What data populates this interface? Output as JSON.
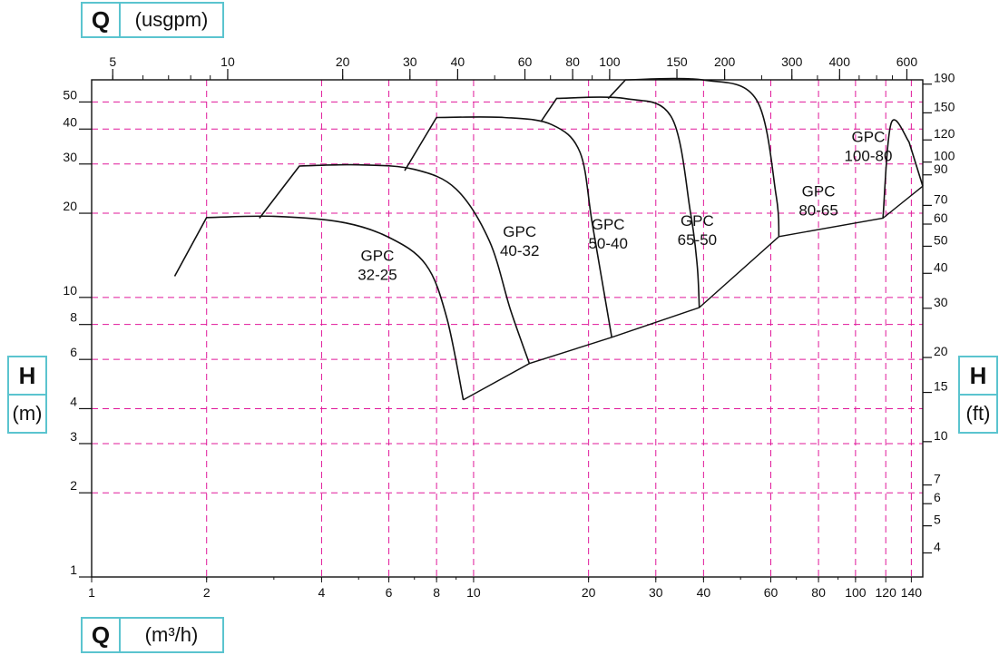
{
  "colors": {
    "accent": "#5bc4cf",
    "grid": "#e0189a",
    "curve": "#111111"
  },
  "labels": {
    "q_top_symbol": "Q",
    "q_top_unit": "(usgpm)",
    "q_bottom_symbol": "Q",
    "q_bottom_unit": "(m³/h)",
    "h_left_symbol": "H",
    "h_left_unit": "(m)",
    "h_right_symbol": "H",
    "h_right_unit": "(ft)"
  },
  "chart_data": {
    "type": "line",
    "xscale": "log",
    "yscale": "log",
    "xlim": [
      1,
      150
    ],
    "ylim": [
      1,
      60
    ],
    "x_ticks_bottom": [
      1,
      2,
      4,
      6,
      8,
      10,
      20,
      30,
      40,
      60,
      80,
      100,
      120,
      140
    ],
    "y_ticks_left": [
      1,
      2,
      3,
      4,
      6,
      8,
      10,
      20,
      30,
      40,
      50
    ],
    "x_ticks_top_usgpm": [
      5,
      10,
      20,
      30,
      40,
      60,
      80,
      100,
      150,
      200,
      300,
      400,
      600
    ],
    "y_ticks_right_ft": [
      4,
      5,
      6,
      7,
      10,
      15,
      20,
      30,
      40,
      50,
      60,
      70,
      90,
      100,
      120,
      150,
      190
    ],
    "grid_x": [
      2,
      4,
      6,
      8,
      10,
      20,
      30,
      40,
      60,
      80,
      100,
      120,
      140
    ],
    "grid_y": [
      2,
      3,
      4,
      6,
      8,
      10,
      20,
      30,
      40,
      50
    ],
    "grid": true,
    "series": [
      {
        "name": "GPC 32-25",
        "label_lines": [
          "GPC",
          "32-25"
        ],
        "label_at": [
          5.6,
          13.5
        ],
        "points": [
          [
            1.65,
            11.9
          ],
          [
            2,
            19.3
          ],
          [
            3,
            19.5
          ],
          [
            4.5,
            18.6
          ],
          [
            6,
            16.4
          ],
          [
            7.5,
            13.1
          ],
          [
            8.5,
            8.5
          ],
          [
            9.4,
            4.3
          ]
        ]
      },
      {
        "name": "GPC 40-32",
        "label_lines": [
          "GPC",
          "40-32"
        ],
        "label_at": [
          13.2,
          16.5
        ],
        "points": [
          [
            2.75,
            19.2
          ],
          [
            3.5,
            29.5
          ],
          [
            5,
            29.8
          ],
          [
            7,
            28.7
          ],
          [
            9,
            24.4
          ],
          [
            11,
            15.9
          ],
          [
            12.5,
            9.0
          ],
          [
            14,
            5.8
          ]
        ]
      },
      {
        "name": "GPC 50-40",
        "label_lines": [
          "GPC",
          "50-40"
        ],
        "label_at": [
          22.5,
          17.5
        ],
        "points": [
          [
            6.6,
            28.4
          ],
          [
            8,
            44
          ],
          [
            12,
            44
          ],
          [
            16,
            41.5
          ],
          [
            19,
            33
          ],
          [
            20.5,
            18
          ],
          [
            23,
            7.2
          ]
        ]
      },
      {
        "name": "GPC 65-50",
        "label_lines": [
          "GPC",
          "65-50"
        ],
        "label_at": [
          38.5,
          18
        ],
        "points": [
          [
            15,
            42.5
          ],
          [
            16.5,
            51.5
          ],
          [
            25,
            51.4
          ],
          [
            33,
            44
          ],
          [
            37,
            20
          ],
          [
            38.5,
            13
          ],
          [
            39,
            9.2
          ]
        ]
      },
      {
        "name": "GPC 80-65",
        "label_lines": [
          "GPC",
          "80-65"
        ],
        "label_at": [
          80,
          23
        ],
        "points": [
          [
            22.5,
            51.4
          ],
          [
            25,
            60
          ],
          [
            40,
            59.9
          ],
          [
            55,
            51
          ],
          [
            62,
            23
          ],
          [
            63,
            16.5
          ]
        ]
      },
      {
        "name": "GPC 100-80",
        "label_lines": [
          "GPC",
          "100-80"
        ],
        "label_at": [
          108,
          36
        ],
        "points": [
          [
            150,
            25
          ],
          [
            138,
            36
          ],
          [
            124,
            42
          ],
          [
            118,
            19.2
          ]
        ]
      }
    ],
    "best_efficiency_line": [
      [
        9.4,
        4.3
      ],
      [
        14,
        5.8
      ],
      [
        23,
        7.2
      ],
      [
        39,
        9.2
      ],
      [
        63,
        16.5
      ],
      [
        118,
        19.2
      ],
      [
        150,
        25
      ]
    ]
  }
}
